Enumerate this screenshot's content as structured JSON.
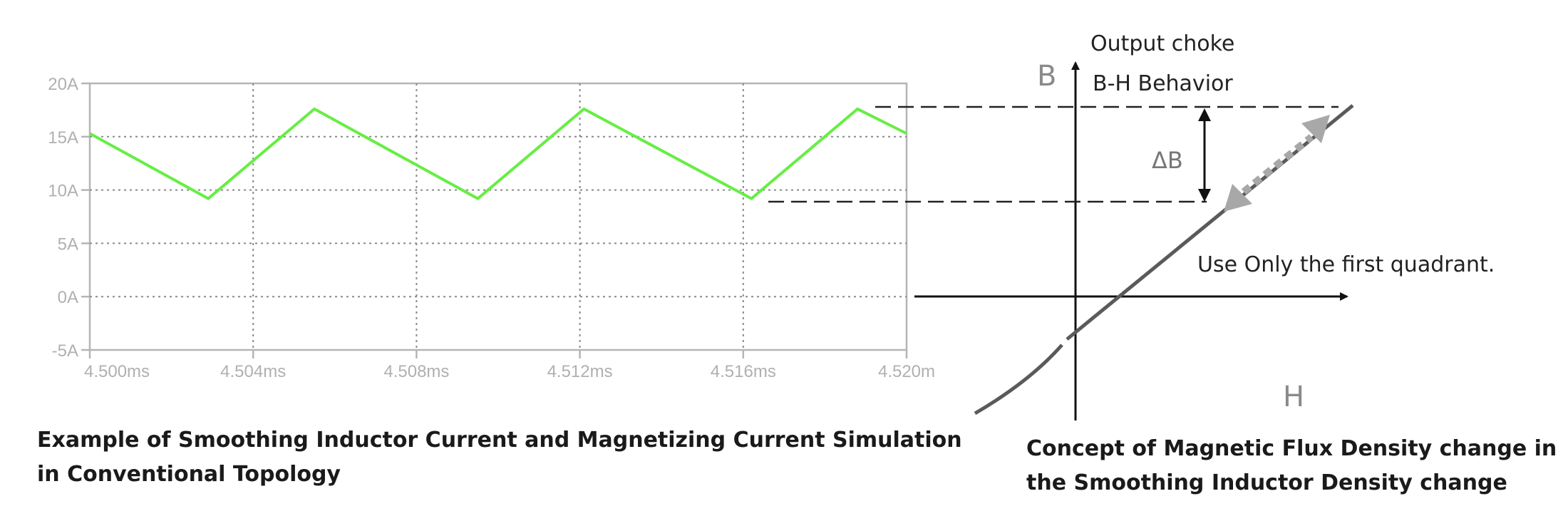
{
  "captions": {
    "left_line1": "Example of Smoothing Inductor Current and Magnetizing Current Simulation",
    "left_line2": "in Conventional Topology",
    "right_line1": "Concept of Magnetic Flux Density change in",
    "right_line2": "the Smoothing Inductor Density change"
  },
  "chart_data": {
    "type": "line",
    "title": "",
    "xlabel": "",
    "ylabel": "",
    "x_unit": "ms",
    "y_unit": "A",
    "xlim": [
      4.5,
      4.52
    ],
    "ylim": [
      -5,
      20
    ],
    "grid": true,
    "xticks": [
      4.5,
      4.504,
      4.508,
      4.512,
      4.516,
      4.52
    ],
    "xtick_labels": [
      "4.500ms",
      "4.504ms",
      "4.508ms",
      "4.512ms",
      "4.516ms",
      "4.520m"
    ],
    "yticks": [
      20,
      15,
      10,
      5,
      0,
      -5
    ],
    "ytick_labels": [
      "20A",
      "15A",
      "10A",
      "5A",
      "0A",
      "-5A"
    ],
    "series": [
      {
        "color": "#66ee44",
        "x": [
          4.5,
          4.5029,
          4.5055,
          4.5095,
          4.5121,
          4.5162,
          4.5188,
          4.52
        ],
        "y": [
          15.3,
          9.2,
          17.6,
          9.2,
          17.6,
          9.2,
          17.6,
          15.3
        ]
      }
    ]
  },
  "bh_diagram": {
    "title_line1": "Output choke",
    "title_line2": "B-H Behavior",
    "b_axis_label": "B",
    "h_axis_label": "H",
    "delta_label": "ΔB",
    "note": "Use Only the first quadrant."
  }
}
